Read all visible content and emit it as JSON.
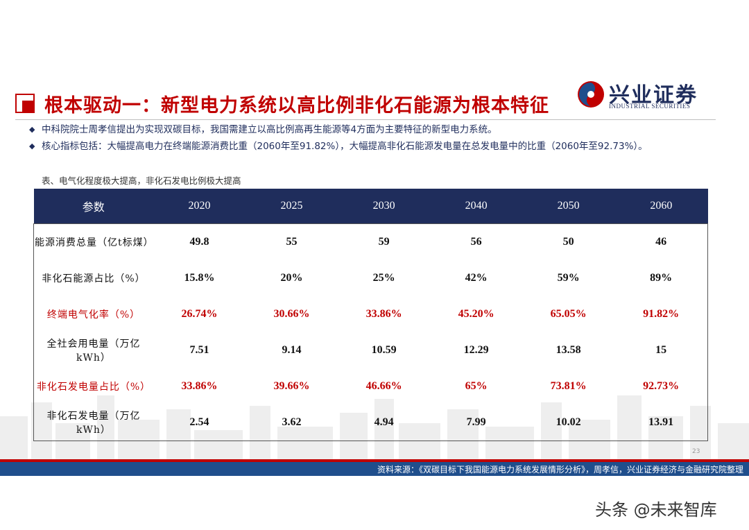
{
  "header": {
    "title": "根本驱动一：新型电力系统以高比例非化石能源为根本特征",
    "logo": "兴业证券",
    "logo_en": "INDUSTRIAL SECURITIES"
  },
  "bullets": [
    "中科院院士周孝信提出为实现双碳目标，我国需建立以高比例高再生能源等4方面为主要特征的新型电力系统。",
    "核心指标包括：大幅提高电力在终端能源消费比重（2060年至91.82%），大幅提高非化石能源发电量在总发电量中的比重（2060年至92.73%）。"
  ],
  "table": {
    "caption": "表、电气化程度极大提高，非化石发电比例极大提高",
    "header": [
      "参数",
      "2020",
      "2025",
      "2030",
      "2040",
      "2050",
      "2060"
    ],
    "rows": [
      {
        "cells": [
          "能源消费总量（亿t标煤）",
          "49.8",
          "55",
          "59",
          "56",
          "50",
          "46"
        ],
        "highlight": false
      },
      {
        "cells": [
          "非化石能源占比（%）",
          "15.8%",
          "20%",
          "25%",
          "42%",
          "59%",
          "89%"
        ],
        "highlight": false
      },
      {
        "cells": [
          "终端电气化率（%）",
          "26.74%",
          "30.66%",
          "33.86%",
          "45.20%",
          "65.05%",
          "91.82%"
        ],
        "highlight": true
      },
      {
        "cells": [
          "全社会用电量（万亿kWh）",
          "7.51",
          "9.14",
          "10.59",
          "12.29",
          "13.58",
          "15"
        ],
        "highlight": false
      },
      {
        "cells": [
          "非化石发电量占比（%）",
          "33.86%",
          "39.66%",
          "46.66%",
          "65%",
          "73.81%",
          "92.73%"
        ],
        "highlight": true
      },
      {
        "cells": [
          "非化石发电量（万亿kWh）",
          "2.54",
          "3.62",
          "4.94",
          "7.99",
          "10.02",
          "13.91"
        ],
        "highlight": false
      }
    ]
  },
  "footer": {
    "page": "23",
    "source": "资料来源：《双碳目标下我国能源电力系统发展情形分析》，周孝信，兴业证券经济与金融研究院整理",
    "watermark": "头条 @未来智库"
  }
}
